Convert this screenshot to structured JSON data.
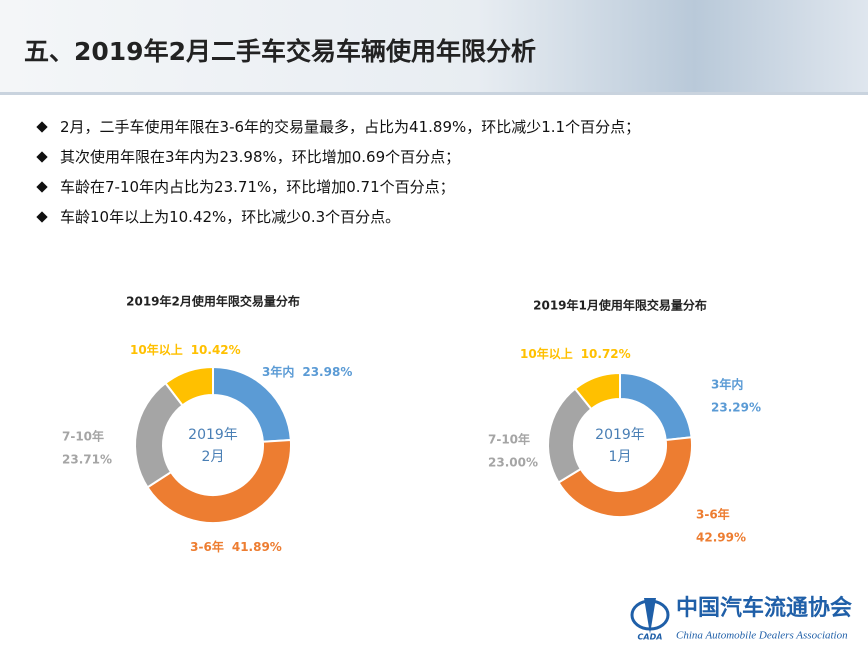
{
  "header": {
    "title": "五、2019年2月二手车交易车辆使用年限分析"
  },
  "bullets": [
    "2月，二手车使用年限在3-6年的交易量最多，占比为41.89%，环比减少1.1个百分点；",
    "其次使用年限在3年内为23.98%，环比增加0.69个百分点；",
    "车龄在7-10年内占比为23.71%，环比增加0.71个百分点；",
    "车龄10年以上为10.42%，环比减少0.3个百分点。"
  ],
  "chart_data": [
    {
      "type": "pie",
      "title": "2019年2月使用年限交易量分布",
      "center_label": [
        "2019年",
        "2月"
      ],
      "categories": [
        "3年内",
        "3-6年",
        "7-10年",
        "10年以上"
      ],
      "values": [
        23.98,
        41.89,
        23.71,
        10.42
      ],
      "value_labels": [
        "23.98%",
        "41.89%",
        "23.71%",
        "10.42%"
      ],
      "colors": [
        "#5b9bd5",
        "#ed7d31",
        "#a5a5a5",
        "#ffc000"
      ]
    },
    {
      "type": "pie",
      "title": "2019年1月使用年限交易量分布",
      "center_label": [
        "2019年",
        "1月"
      ],
      "categories": [
        "3年内",
        "3-6年",
        "7-10年",
        "10年以上"
      ],
      "values": [
        23.29,
        42.99,
        23.0,
        10.72
      ],
      "value_labels": [
        "23.29%",
        "42.99%",
        "23.00%",
        "10.72%"
      ],
      "colors": [
        "#5b9bd5",
        "#ed7d31",
        "#a5a5a5",
        "#ffc000"
      ]
    }
  ],
  "footer": {
    "logo_abbr": "CADA",
    "logo_cn": "中国汽车流通协会",
    "logo_en": "China Automobile Dealers Association"
  }
}
